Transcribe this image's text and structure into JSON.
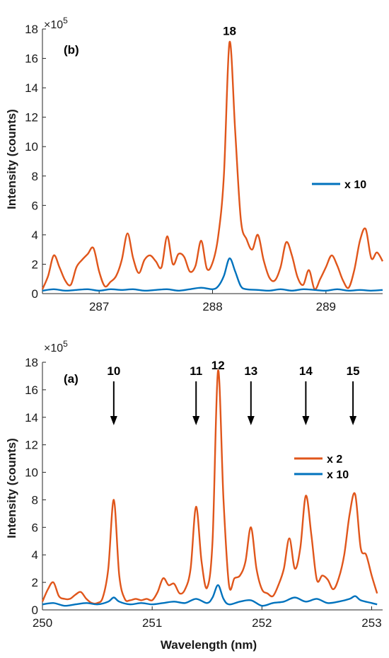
{
  "chart_data": [
    {
      "type": "line",
      "panel_label": "(b)",
      "xlabel": "",
      "ylabel": "Intensity (counts)",
      "y_multiplier": "×10",
      "y_multiplier_exp": "5",
      "xlim": [
        286.5,
        289.5
      ],
      "ylim": [
        0,
        18
      ],
      "xticks": [
        287,
        288,
        289
      ],
      "yticks": [
        0,
        2,
        4,
        6,
        8,
        10,
        12,
        14,
        16,
        18
      ],
      "legend_position": "right",
      "legend_entries": [
        {
          "label": "x 10",
          "color": "#0072bd"
        }
      ],
      "annotations": [
        {
          "text": "18",
          "x": 288.15,
          "y": 17.1
        }
      ],
      "series": [
        {
          "color": "#e0561b",
          "x": [
            286.5,
            286.55,
            286.6,
            286.65,
            286.7,
            286.75,
            286.8,
            286.85,
            286.9,
            286.95,
            287.0,
            287.05,
            287.1,
            287.15,
            287.2,
            287.25,
            287.3,
            287.35,
            287.4,
            287.45,
            287.5,
            287.55,
            287.6,
            287.65,
            287.7,
            287.75,
            287.8,
            287.85,
            287.9,
            287.95,
            288.0,
            288.05,
            288.1,
            288.15,
            288.2,
            288.25,
            288.3,
            288.35,
            288.4,
            288.45,
            288.5,
            288.55,
            288.6,
            288.65,
            288.7,
            288.75,
            288.8,
            288.85,
            288.9,
            288.95,
            289.0,
            289.05,
            289.1,
            289.15,
            289.2,
            289.25,
            289.3,
            289.35,
            289.4,
            289.45,
            289.5
          ],
          "values": [
            0.3,
            1.2,
            2.6,
            1.8,
            0.9,
            0.6,
            1.8,
            2.3,
            2.7,
            3.1,
            1.5,
            0.5,
            0.8,
            1.2,
            2.3,
            4.1,
            2.4,
            1.4,
            2.3,
            2.6,
            2.2,
            1.8,
            3.9,
            2.0,
            2.7,
            2.5,
            1.5,
            1.9,
            3.6,
            1.7,
            2.1,
            3.9,
            8.0,
            17.1,
            11.0,
            5.0,
            3.7,
            3.0,
            4.0,
            2.3,
            1.1,
            0.9,
            1.8,
            3.5,
            2.6,
            1.1,
            0.6,
            1.6,
            0.3,
            1.0,
            1.8,
            2.6,
            1.9,
            0.9,
            0.4,
            1.6,
            3.6,
            4.4,
            2.4,
            2.8,
            2.2
          ]
        },
        {
          "name": "x 10",
          "color": "#0072bd",
          "x": [
            286.5,
            286.6,
            286.7,
            286.8,
            286.9,
            287.0,
            287.1,
            287.2,
            287.3,
            287.4,
            287.5,
            287.6,
            287.7,
            287.8,
            287.9,
            288.0,
            288.05,
            288.1,
            288.15,
            288.2,
            288.25,
            288.3,
            288.4,
            288.5,
            288.6,
            288.7,
            288.8,
            288.9,
            289.0,
            289.1,
            289.2,
            289.3,
            289.4,
            289.5
          ],
          "values": [
            0.2,
            0.3,
            0.2,
            0.25,
            0.3,
            0.2,
            0.3,
            0.25,
            0.3,
            0.2,
            0.25,
            0.3,
            0.2,
            0.3,
            0.4,
            0.3,
            0.5,
            1.2,
            2.4,
            1.5,
            0.5,
            0.3,
            0.25,
            0.2,
            0.3,
            0.2,
            0.3,
            0.25,
            0.2,
            0.3,
            0.2,
            0.25,
            0.2,
            0.25
          ]
        }
      ]
    },
    {
      "type": "line",
      "panel_label": "(a)",
      "xlabel": "Wavelength (nm)",
      "ylabel": "Intensity (counts)",
      "y_multiplier": "×10",
      "y_multiplier_exp": "5",
      "xlim": [
        250,
        253.1
      ],
      "ylim": [
        0,
        18
      ],
      "xticks": [
        250,
        251,
        252,
        253
      ],
      "yticks": [
        0,
        2,
        4,
        6,
        8,
        10,
        12,
        14,
        16,
        18
      ],
      "legend_position": "right",
      "legend_entries": [
        {
          "label": "x 2",
          "color": "#e0561b"
        },
        {
          "label": "x 10",
          "color": "#0072bd"
        }
      ],
      "annotations": [
        {
          "text": "10",
          "x": 250.65,
          "arrow": true
        },
        {
          "text": "11",
          "x": 251.4,
          "arrow": true
        },
        {
          "text": "12",
          "x": 251.6,
          "arrow": false
        },
        {
          "text": "13",
          "x": 251.9,
          "arrow": true
        },
        {
          "text": "14",
          "x": 252.4,
          "arrow": true
        },
        {
          "text": "15",
          "x": 252.83,
          "arrow": true
        }
      ],
      "series": [
        {
          "name": "x 2",
          "color": "#e0561b",
          "x": [
            250.0,
            250.05,
            250.1,
            250.15,
            250.2,
            250.25,
            250.3,
            250.35,
            250.4,
            250.45,
            250.5,
            250.55,
            250.6,
            250.65,
            250.7,
            250.75,
            250.8,
            250.85,
            250.9,
            250.95,
            251.0,
            251.05,
            251.1,
            251.15,
            251.2,
            251.25,
            251.3,
            251.35,
            251.4,
            251.45,
            251.5,
            251.55,
            251.6,
            251.65,
            251.7,
            251.75,
            251.8,
            251.85,
            251.9,
            251.95,
            252.0,
            252.05,
            252.1,
            252.15,
            252.2,
            252.25,
            252.3,
            252.35,
            252.4,
            252.45,
            252.5,
            252.55,
            252.6,
            252.65,
            252.7,
            252.75,
            252.8,
            252.85,
            252.9,
            252.95,
            253.0,
            253.05
          ],
          "values": [
            0.6,
            1.5,
            2.0,
            1.0,
            0.8,
            0.8,
            1.1,
            1.3,
            0.8,
            0.5,
            0.5,
            0.9,
            3.0,
            8.0,
            2.5,
            0.8,
            0.7,
            0.8,
            0.7,
            0.8,
            0.7,
            1.3,
            2.3,
            1.8,
            1.9,
            1.2,
            1.5,
            3.0,
            7.5,
            3.5,
            1.6,
            5.0,
            17.4,
            8.0,
            1.8,
            2.3,
            2.5,
            3.5,
            6.0,
            3.0,
            1.5,
            1.2,
            1.0,
            1.8,
            3.0,
            5.2,
            3.0,
            4.5,
            8.3,
            5.5,
            2.2,
            2.5,
            2.2,
            1.5,
            2.3,
            4.0,
            7.0,
            8.4,
            4.5,
            4.0,
            2.5,
            1.2
          ]
        },
        {
          "name": "x 10",
          "color": "#0072bd",
          "x": [
            250.0,
            250.1,
            250.2,
            250.3,
            250.4,
            250.5,
            250.6,
            250.65,
            250.7,
            250.8,
            250.9,
            251.0,
            251.1,
            251.2,
            251.3,
            251.4,
            251.5,
            251.55,
            251.6,
            251.65,
            251.7,
            251.8,
            251.9,
            252.0,
            252.1,
            252.2,
            252.3,
            252.4,
            252.5,
            252.6,
            252.7,
            252.8,
            252.85,
            252.9,
            253.0,
            253.05
          ],
          "values": [
            0.4,
            0.5,
            0.3,
            0.4,
            0.5,
            0.4,
            0.6,
            0.9,
            0.6,
            0.4,
            0.5,
            0.4,
            0.5,
            0.6,
            0.5,
            0.8,
            0.5,
            0.9,
            1.8,
            0.8,
            0.4,
            0.6,
            0.7,
            0.3,
            0.5,
            0.6,
            0.9,
            0.6,
            0.8,
            0.5,
            0.6,
            0.8,
            1.0,
            0.7,
            0.5,
            0.4
          ]
        }
      ]
    }
  ]
}
